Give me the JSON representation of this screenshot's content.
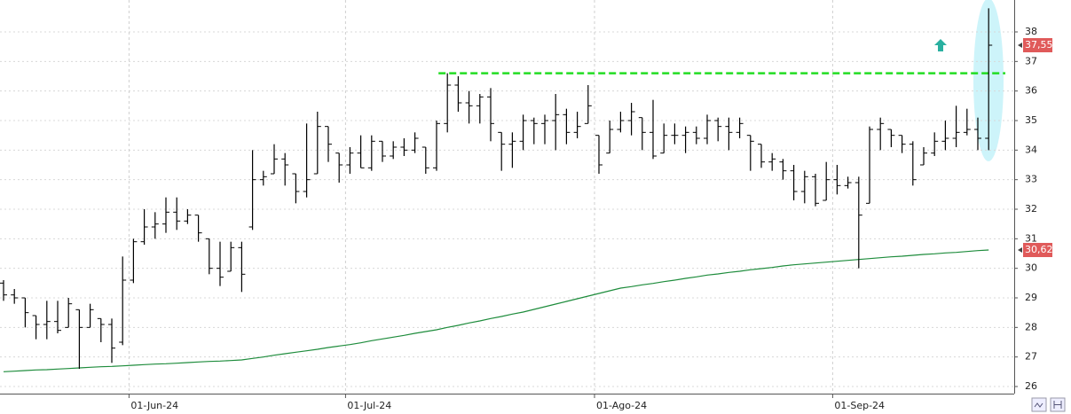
{
  "chart_data": {
    "type": "ohlc",
    "bar_color": "#000000",
    "categories": [
      null,
      null,
      null,
      null,
      null,
      null,
      null,
      null,
      null,
      null,
      null,
      null,
      "01-Jun-24",
      null,
      null,
      null,
      null,
      null,
      null,
      null,
      null,
      null,
      null,
      null,
      null,
      null,
      null,
      null,
      null,
      null,
      null,
      null,
      "01-Jul-24",
      null,
      null,
      null,
      null,
      null,
      null,
      null,
      null,
      null,
      null,
      null,
      null,
      null,
      null,
      null,
      null,
      null,
      null,
      null,
      null,
      null,
      null,
      "01-Ago-24",
      null,
      null,
      null,
      null,
      null,
      null,
      null,
      null,
      null,
      null,
      null,
      null,
      null,
      null,
      null,
      null,
      null,
      null,
      null,
      null,
      null,
      "01-Sep-24",
      null,
      null,
      null,
      null,
      null,
      null,
      null,
      null,
      null,
      null,
      null,
      null,
      null,
      null
    ],
    "open": [
      29.5,
      29.1,
      29.0,
      28.4,
      28.1,
      28.2,
      28.0,
      28.6,
      28.0,
      28.3,
      28.1,
      27.5,
      29.6,
      30.9,
      31.4,
      31.5,
      31.9,
      31.6,
      31.8,
      31.0,
      30.0,
      29.9,
      30.7,
      31.4,
      33.0,
      33.2,
      33.7,
      33.2,
      32.6,
      33.2,
      34.8,
      33.9,
      33.5,
      33.9,
      33.4,
      34.3,
      33.8,
      34.1,
      34.0,
      34.1,
      33.4,
      34.9,
      36.2,
      35.6,
      35.5,
      35.8,
      34.6,
      34.2,
      34.3,
      35.0,
      34.9,
      35.0,
      35.2,
      34.6,
      34.9,
      34.5,
      33.9,
      34.7,
      35.0,
      35.1,
      34.6,
      33.9,
      34.5,
      34.5,
      34.6,
      34.4,
      35.0,
      34.8,
      34.6,
      34.5,
      34.2,
      33.6,
      33.6,
      33.3,
      32.6,
      33.1,
      32.3,
      33.0,
      32.8,
      32.9,
      32.2,
      34.7,
      34.7,
      34.5,
      34.2,
      33.5,
      33.9,
      34.3,
      34.4,
      34.6,
      34.7,
      34.4
    ],
    "high": [
      29.6,
      29.3,
      29.0,
      28.4,
      28.9,
      28.9,
      29.0,
      28.6,
      28.8,
      28.3,
      28.3,
      30.4,
      31.0,
      32.0,
      31.9,
      32.4,
      32.4,
      32.0,
      31.8,
      31.0,
      30.9,
      30.9,
      30.9,
      34.0,
      33.3,
      34.2,
      33.9,
      33.2,
      34.9,
      35.3,
      34.8,
      33.9,
      34.1,
      34.5,
      34.5,
      34.3,
      34.3,
      34.4,
      34.6,
      34.1,
      35.0,
      36.6,
      36.5,
      36.0,
      35.9,
      36.1,
      34.6,
      34.6,
      35.2,
      35.1,
      35.2,
      35.9,
      35.4,
      35.3,
      36.2,
      34.5,
      35.0,
      35.3,
      35.6,
      35.1,
      35.7,
      34.9,
      34.9,
      34.8,
      34.8,
      35.2,
      35.1,
      35.1,
      35.1,
      34.5,
      34.2,
      33.9,
      33.7,
      33.5,
      33.3,
      33.2,
      33.6,
      33.5,
      33.1,
      33.1,
      34.8,
      35.1,
      34.7,
      34.5,
      34.3,
      34.1,
      34.6,
      35.0,
      35.5,
      35.4,
      35.1,
      38.8
    ],
    "low": [
      28.9,
      28.8,
      28.0,
      27.6,
      27.6,
      27.8,
      28.0,
      26.6,
      28.0,
      27.5,
      26.8,
      27.4,
      29.5,
      30.8,
      31.0,
      31.2,
      31.3,
      31.5,
      30.9,
      29.8,
      29.4,
      29.9,
      29.2,
      31.3,
      32.8,
      33.2,
      32.8,
      32.2,
      32.4,
      33.2,
      33.6,
      32.9,
      33.2,
      33.4,
      33.3,
      33.6,
      33.7,
      33.8,
      33.9,
      33.2,
      33.3,
      34.6,
      35.3,
      34.9,
      34.9,
      34.3,
      33.3,
      33.4,
      34.0,
      34.2,
      34.2,
      34.0,
      34.2,
      34.4,
      34.9,
      33.2,
      33.9,
      34.6,
      34.5,
      34.0,
      33.7,
      33.9,
      34.2,
      33.9,
      34.2,
      34.2,
      34.3,
      34.0,
      34.4,
      33.3,
      33.4,
      33.3,
      33.0,
      32.3,
      32.2,
      32.1,
      32.3,
      32.5,
      32.7,
      30.0,
      32.2,
      34.0,
      34.1,
      33.9,
      32.8,
      33.5,
      33.8,
      34.0,
      34.1,
      34.5,
      34.0,
      34.0
    ],
    "close": [
      29.1,
      29.0,
      28.5,
      28.1,
      28.2,
      27.9,
      28.8,
      28.0,
      28.6,
      28.1,
      27.3,
      29.6,
      30.9,
      31.4,
      31.5,
      31.9,
      31.6,
      31.8,
      31.2,
      30.0,
      29.7,
      30.7,
      29.8,
      33.0,
      33.1,
      33.7,
      33.5,
      32.6,
      33.0,
      34.8,
      34.2,
      33.5,
      33.9,
      33.4,
      34.3,
      33.8,
      34.1,
      34.0,
      34.4,
      33.4,
      34.9,
      36.2,
      35.6,
      35.5,
      35.8,
      34.9,
      34.2,
      34.3,
      35.0,
      34.9,
      35.0,
      35.2,
      34.6,
      34.8,
      35.5,
      33.5,
      34.7,
      35.0,
      35.3,
      34.6,
      33.8,
      34.5,
      34.5,
      34.6,
      34.4,
      35.0,
      34.8,
      34.6,
      34.9,
      34.3,
      33.6,
      33.7,
      33.3,
      32.6,
      33.1,
      32.2,
      33.0,
      32.8,
      32.9,
      31.8,
      34.7,
      34.9,
      34.5,
      34.2,
      33.0,
      33.9,
      34.3,
      34.4,
      34.6,
      34.7,
      34.4,
      37.55
    ],
    "moving_average": {
      "color": "#1e8c3c",
      "values": [
        26.5,
        26.52,
        26.54,
        26.56,
        26.57,
        26.59,
        26.61,
        26.63,
        26.65,
        26.67,
        26.68,
        26.7,
        26.72,
        26.74,
        26.76,
        26.77,
        26.79,
        26.81,
        26.83,
        26.85,
        26.86,
        26.88,
        26.9,
        26.95,
        27.0,
        27.06,
        27.11,
        27.16,
        27.21,
        27.26,
        27.32,
        27.37,
        27.42,
        27.48,
        27.55,
        27.61,
        27.67,
        27.73,
        27.8,
        27.86,
        27.92,
        28.0,
        28.07,
        28.15,
        28.22,
        28.3,
        28.37,
        28.45,
        28.52,
        28.61,
        28.7,
        28.79,
        28.88,
        28.97,
        29.06,
        29.15,
        29.24,
        29.33,
        29.38,
        29.44,
        29.49,
        29.55,
        29.6,
        29.66,
        29.71,
        29.77,
        29.81,
        29.86,
        29.9,
        29.95,
        29.99,
        30.03,
        30.08,
        30.12,
        30.15,
        30.18,
        30.21,
        30.24,
        30.27,
        30.3,
        30.33,
        30.36,
        30.39,
        30.41,
        30.44,
        30.47,
        30.49,
        30.52,
        30.54,
        30.57,
        30.6,
        30.62
      ]
    },
    "resistance": {
      "value": 36.6,
      "color": "#22dd22"
    },
    "price_tags": [
      {
        "value": 37.55,
        "label": "37,55",
        "color": "#e05a5a"
      },
      {
        "value": 30.62,
        "label": "30,62",
        "color": "#e05a5a"
      }
    ],
    "ylim": [
      25.76,
      39.08
    ],
    "yticks": [
      26,
      27,
      28,
      29,
      30,
      31,
      32,
      33,
      34,
      35,
      36,
      37,
      38
    ],
    "grid": true
  }
}
